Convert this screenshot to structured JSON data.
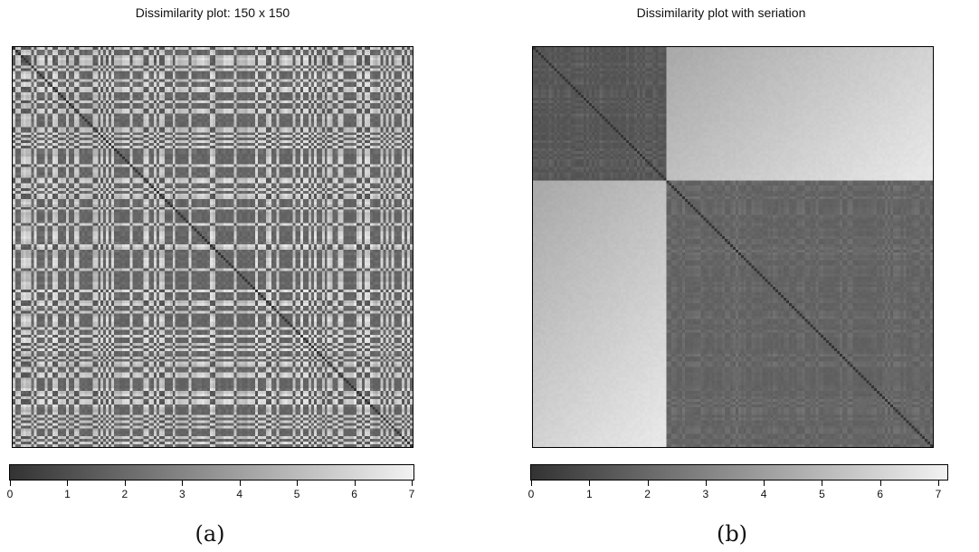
{
  "chart_data": [
    {
      "type": "heatmap",
      "title": "Dissimilarity plot: 150 x 150",
      "caption": "(a)",
      "n": 150,
      "seriation": false,
      "value_range": [
        0,
        7
      ],
      "colorbar": {
        "colors": [
          "#333333",
          "#f2f2f2"
        ],
        "ticks": [
          0,
          1,
          2,
          3,
          4,
          5,
          6,
          7
        ]
      },
      "grid": false,
      "legend": "bottom"
    },
    {
      "type": "heatmap",
      "title": "Dissimilarity plot with seriation",
      "caption": "(b)",
      "n": 150,
      "seriation": true,
      "blocks": [
        {
          "size": 50,
          "within_mean": 1.0
        },
        {
          "size": 100,
          "within_mean": 1.5
        }
      ],
      "between_blocks_range": [
        4.2,
        6.6
      ],
      "value_range": [
        0,
        7
      ],
      "colorbar": {
        "colors": [
          "#333333",
          "#f2f2f2"
        ],
        "ticks": [
          0,
          1,
          2,
          3,
          4,
          5,
          6,
          7
        ]
      },
      "grid": false,
      "legend": "bottom"
    }
  ]
}
